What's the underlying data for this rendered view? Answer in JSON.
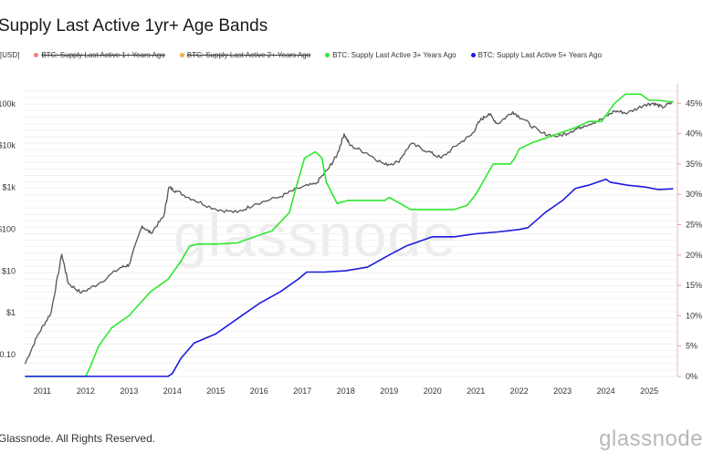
{
  "title": "Supply Last Active 1yr+ Age Bands",
  "legend": {
    "unit": "[USD]",
    "items": [
      {
        "label": "BTC: Supply Last Active 1+ Years Ago",
        "color": "#f08080",
        "hidden": true
      },
      {
        "label": "BTC: Supply Last Active 2+ Years Ago",
        "color": "#f5b041",
        "hidden": true
      },
      {
        "label": "BTC: Supply Last Active 3+ Years Ago",
        "color": "#2ee82e",
        "hidden": false
      },
      {
        "label": "BTC: Supply Last Active 5+ Years Ago",
        "color": "#1a1ae0",
        "hidden": false
      }
    ]
  },
  "watermark": "glassnode",
  "footer": "Glassnode. All Rights Reserved.",
  "brand": "glassnode",
  "chart_data": {
    "type": "line",
    "x_ticks": [
      "2011",
      "2012",
      "2013",
      "2014",
      "2015",
      "2016",
      "2017",
      "2018",
      "2019",
      "2020",
      "2021",
      "2022",
      "2023",
      "2024",
      "2025"
    ],
    "y_left": {
      "scale": "log",
      "unit": "USD",
      "ticks": [
        "$0.10",
        "$1",
        "$10",
        "$100",
        "$1k",
        "$10k",
        "100k"
      ],
      "tick_values": [
        0.1,
        1,
        10,
        100,
        1000,
        10000,
        100000
      ],
      "range": [
        0.03,
        200000
      ]
    },
    "y_right": {
      "unit": "%",
      "ticks": [
        "0%",
        "5%",
        "10%",
        "15%",
        "20%",
        "25%",
        "30%",
        "35%",
        "40%",
        "45%"
      ],
      "range": [
        0,
        47
      ]
    },
    "series": [
      {
        "name": "Price",
        "axis": "left",
        "color": "#555555",
        "x": [
          2010.6,
          2010.9,
          2011.2,
          2011.45,
          2011.6,
          2011.9,
          2012.3,
          2012.8,
          2013.0,
          2013.3,
          2013.5,
          2013.8,
          2013.92,
          2014.1,
          2014.5,
          2015.0,
          2015.5,
          2015.9,
          2016.5,
          2016.9,
          2017.3,
          2017.6,
          2017.8,
          2017.96,
          2018.1,
          2018.5,
          2018.9,
          2019.2,
          2019.5,
          2019.9,
          2020.2,
          2020.6,
          2020.9,
          2021.1,
          2021.3,
          2021.5,
          2021.85,
          2022.1,
          2022.5,
          2022.9,
          2023.2,
          2023.5,
          2023.9,
          2024.2,
          2024.5,
          2024.9,
          2025.1,
          2025.3,
          2025.55
        ],
        "y": [
          0.06,
          0.3,
          1,
          25,
          5,
          3,
          5,
          12,
          14,
          120,
          80,
          200,
          1000,
          800,
          500,
          300,
          250,
          400,
          600,
          950,
          1200,
          2800,
          6000,
          19000,
          10000,
          6500,
          3500,
          4000,
          11000,
          7200,
          5000,
          11000,
          18000,
          40000,
          58000,
          33000,
          64000,
          42000,
          20000,
          16500,
          22000,
          30000,
          42000,
          67000,
          60000,
          96000,
          102000,
          82000,
          110000
        ]
      },
      {
        "name": "BTC: Supply Last Active 3+ Years Ago",
        "axis": "right",
        "color": "#2ee82e",
        "x": [
          2010.6,
          2012.0,
          2012.1,
          2012.3,
          2012.6,
          2013.0,
          2013.5,
          2013.9,
          2014.2,
          2014.4,
          2014.6,
          2015.0,
          2015.5,
          2015.9,
          2016.3,
          2016.7,
          2016.85,
          2017.05,
          2017.3,
          2017.45,
          2017.55,
          2017.8,
          2018.05,
          2018.5,
          2018.9,
          2019.0,
          2019.5,
          2020.0,
          2020.5,
          2020.8,
          2021.0,
          2021.2,
          2021.4,
          2021.8,
          2021.9,
          2022.0,
          2022.3,
          2022.9,
          2023.3,
          2023.6,
          2023.9,
          2024.0,
          2024.2,
          2024.45,
          2024.8,
          2025.0,
          2025.2,
          2025.55
        ],
        "y": [
          0,
          0,
          1.5,
          5,
          8,
          10,
          14,
          16,
          19,
          21.5,
          21.8,
          21.8,
          22,
          23,
          24,
          27,
          31,
          36,
          37,
          36,
          32,
          28.5,
          29,
          29,
          29,
          29.5,
          27.5,
          27.5,
          27.5,
          28.2,
          30,
          32.5,
          35,
          35,
          36,
          37.5,
          38.5,
          40,
          41,
          42,
          42,
          43,
          45,
          46.5,
          46.5,
          45.5,
          45.5,
          45.2
        ]
      },
      {
        "name": "BTC: Supply Last Active 5+ Years Ago",
        "axis": "right",
        "color": "#1a1ae0",
        "x": [
          2010.6,
          2013.9,
          2014.0,
          2014.2,
          2014.5,
          2015.0,
          2015.5,
          2016.0,
          2016.5,
          2016.9,
          2017.1,
          2017.5,
          2018.0,
          2018.5,
          2019.0,
          2019.4,
          2019.6,
          2020.0,
          2020.5,
          2021.0,
          2021.5,
          2022.0,
          2022.2,
          2022.6,
          2023.0,
          2023.3,
          2023.6,
          2024.0,
          2024.1,
          2024.5,
          2024.9,
          2025.2,
          2025.55
        ],
        "y": [
          0,
          0,
          0.5,
          3,
          5.5,
          7,
          9.5,
          12,
          14,
          16,
          17.2,
          17.2,
          17.4,
          18,
          20,
          21.5,
          22,
          23,
          23,
          23.5,
          23.8,
          24.2,
          24.5,
          27,
          29,
          31,
          31.5,
          32.5,
          32,
          31.5,
          31.2,
          30.8,
          30.9
        ]
      }
    ]
  }
}
